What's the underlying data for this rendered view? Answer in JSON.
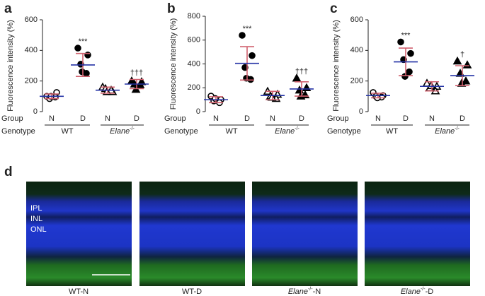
{
  "chart_data": [
    {
      "type": "dotplot",
      "panel": "a",
      "y_label": "Fluorescence intensity (%)",
      "ylim": [
        0,
        600
      ],
      "yticks": [
        0,
        200,
        400,
        600
      ],
      "row_labels": [
        "Group",
        "Genotype"
      ],
      "genotypes": [
        {
          "name": "WT"
        },
        {
          "name": "Elane",
          "sup": "-/-"
        }
      ],
      "mean_color": "#2433a6",
      "sd_color": "#d0606e",
      "marker_color": "#000000",
      "groups": [
        {
          "group": "N",
          "marker": "circle",
          "filled": false,
          "values": [
            100,
            125,
            85,
            95,
            100
          ],
          "mean": 100,
          "sd": 15
        },
        {
          "group": "D",
          "marker": "circle",
          "filled": true,
          "values": [
            415,
            370,
            310,
            250,
            260
          ],
          "mean": 305,
          "sd": 75,
          "annotation": "***"
        },
        {
          "group": "N",
          "marker": "triangle",
          "filled": false,
          "values": [
            160,
            130,
            150,
            140,
            130
          ],
          "mean": 140,
          "sd": 20
        },
        {
          "group": "D",
          "marker": "triangle",
          "filled": true,
          "values": [
            200,
            195,
            180,
            175,
            145
          ],
          "mean": 180,
          "sd": 30,
          "annotation": "†††"
        }
      ]
    },
    {
      "type": "dotplot",
      "panel": "b",
      "y_label": "Fluorescence intensity (%)",
      "ylim": [
        0,
        800
      ],
      "yticks": [
        0,
        200,
        400,
        600,
        800
      ],
      "row_labels": [
        "Group",
        "Genotype"
      ],
      "genotypes": [
        {
          "name": "WT"
        },
        {
          "name": "Elane",
          "sup": "-/-"
        }
      ],
      "mean_color": "#2433a6",
      "sd_color": "#d0606e",
      "marker_color": "#000000",
      "groups": [
        {
          "group": "N",
          "marker": "circle",
          "filled": false,
          "values": [
            130,
            100,
            90,
            75,
            110
          ],
          "mean": 100,
          "sd": 25
        },
        {
          "group": "D",
          "marker": "circle",
          "filled": true,
          "values": [
            640,
            470,
            370,
            270,
            280
          ],
          "mean": 405,
          "sd": 140,
          "annotation": "***"
        },
        {
          "group": "N",
          "marker": "triangle",
          "filled": false,
          "values": [
            170,
            145,
            130,
            110,
            120
          ],
          "mean": 135,
          "sd": 35
        },
        {
          "group": "D",
          "marker": "triangle",
          "filled": true,
          "values": [
            280,
            200,
            180,
            140,
            130
          ],
          "mean": 190,
          "sd": 60,
          "annotation": "†††"
        }
      ]
    },
    {
      "type": "dotplot",
      "panel": "c",
      "y_label": "Fluorescence intensity (%)",
      "ylim": [
        0,
        600
      ],
      "yticks": [
        0,
        200,
        400,
        600
      ],
      "row_labels": [
        "Group",
        "Genotype"
      ],
      "genotypes": [
        {
          "name": "WT"
        },
        {
          "name": "Elane",
          "sup": "-/-"
        }
      ],
      "mean_color": "#2433a6",
      "sd_color": "#d0606e",
      "marker_color": "#000000",
      "groups": [
        {
          "group": "N",
          "marker": "circle",
          "filled": false,
          "values": [
            125,
            105,
            100,
            95,
            90
          ],
          "mean": 105,
          "sd": 15
        },
        {
          "group": "D",
          "marker": "circle",
          "filled": true,
          "values": [
            455,
            380,
            340,
            260,
            230
          ],
          "mean": 325,
          "sd": 90,
          "annotation": "***"
        },
        {
          "group": "N",
          "marker": "triangle",
          "filled": false,
          "values": [
            185,
            165,
            155,
            135,
            170
          ],
          "mean": 165,
          "sd": 30
        },
        {
          "group": "D",
          "marker": "triangle",
          "filled": true,
          "values": [
            330,
            305,
            250,
            200,
            185
          ],
          "mean": 235,
          "sd": 65,
          "annotation": "†"
        }
      ]
    }
  ],
  "images": {
    "panel": "d",
    "layer_labels": [
      "IPL",
      "INL",
      "ONL"
    ],
    "captions": [
      {
        "name": "WT",
        "suffix": "-N"
      },
      {
        "name": "WT",
        "suffix": "-D"
      },
      {
        "name": "Elane",
        "sup": "-/-",
        "suffix": "-N"
      },
      {
        "name": "Elane",
        "sup": "-/-",
        "suffix": "-D"
      }
    ]
  }
}
